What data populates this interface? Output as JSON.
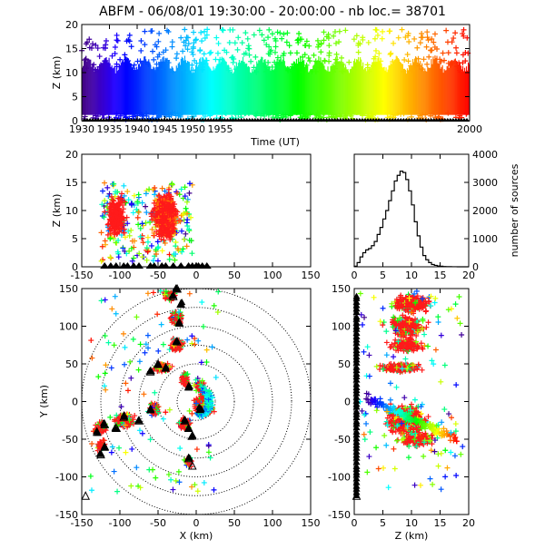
{
  "title": "ABFM - 06/08/01 19:30:00 - 20:00:00 - nb loc.=  38701",
  "chart_data": [
    {
      "id": "time_height",
      "type": "scatter",
      "xlabel": "Time (UT)",
      "ylabel": "Z (km)",
      "xlim": [
        1930,
        2000
      ],
      "ylim": [
        0,
        20
      ],
      "xticks": [
        1930,
        1935,
        1940,
        1945,
        1950,
        1955,
        2000
      ],
      "yticks": [
        0,
        5,
        10,
        15,
        20
      ],
      "color_scale": "rainbow by time",
      "density": [
        {
          "t": 1930,
          "zmin": 1,
          "zmax": 12
        },
        {
          "t": 1935,
          "zmin": 1,
          "zmax": 13
        },
        {
          "t": 1940,
          "zmin": 1,
          "zmax": 13
        },
        {
          "t": 1945,
          "zmin": 1,
          "zmax": 12
        },
        {
          "t": 1950,
          "zmin": 1,
          "zmax": 12
        },
        {
          "t": 1955,
          "zmin": 1,
          "zmax": 12
        },
        {
          "t": 2000,
          "zmin": 1,
          "zmax": 12
        }
      ]
    },
    {
      "id": "x_height",
      "type": "scatter",
      "xlabel": "",
      "ylabel": "Z (km)",
      "xlim": [
        -150,
        150
      ],
      "ylim": [
        0,
        20
      ],
      "xticks": [
        -150,
        -100,
        -50,
        0,
        50,
        100,
        150
      ],
      "yticks": [
        0,
        5,
        10,
        15,
        20
      ]
    },
    {
      "id": "altitude_histogram",
      "type": "bar",
      "xlabel": "",
      "ylabel": "number of sources",
      "xlim": [
        0,
        20
      ],
      "ylim": [
        0,
        4000
      ],
      "xticks": [
        0,
        5,
        10,
        15,
        20
      ],
      "yticks": [
        0,
        1000,
        2000,
        3000,
        4000
      ],
      "x": [
        0.5,
        1,
        1.5,
        2,
        2.5,
        3,
        3.5,
        4,
        4.5,
        5,
        5.5,
        6,
        6.5,
        7,
        7.5,
        8,
        8.5,
        9,
        9.5,
        10,
        10.5,
        11,
        11.5,
        12,
        12.5,
        13,
        13.5,
        14,
        14.5,
        15,
        15.5,
        16,
        17,
        18,
        19,
        20
      ],
      "values": [
        20,
        150,
        350,
        500,
        600,
        650,
        750,
        900,
        1150,
        1400,
        1700,
        2000,
        2350,
        2700,
        3050,
        3250,
        3400,
        3350,
        3100,
        2700,
        2200,
        1600,
        1100,
        700,
        400,
        250,
        150,
        80,
        50,
        30,
        20,
        10,
        5,
        2,
        0,
        0
      ]
    },
    {
      "id": "plan_view",
      "type": "scatter",
      "xlabel": "X (km)",
      "ylabel": "Y (km)",
      "xlim": [
        -150,
        150
      ],
      "ylim": [
        -150,
        150
      ],
      "xticks": [
        -150,
        -100,
        -50,
        0,
        50,
        100,
        150
      ],
      "yticks": [
        -150,
        -100,
        -50,
        0,
        50,
        100,
        150
      ],
      "rings_km": [
        25,
        50,
        75,
        100,
        125,
        150
      ]
    },
    {
      "id": "height_y",
      "type": "scatter",
      "xlabel": "Z (km)",
      "ylabel": "",
      "xlim": [
        0,
        20
      ],
      "ylim": [
        -150,
        150
      ],
      "xticks": [
        0,
        5,
        10,
        15,
        20
      ],
      "yticks": [
        -150,
        -100,
        -50,
        0,
        50,
        100,
        150
      ]
    }
  ]
}
